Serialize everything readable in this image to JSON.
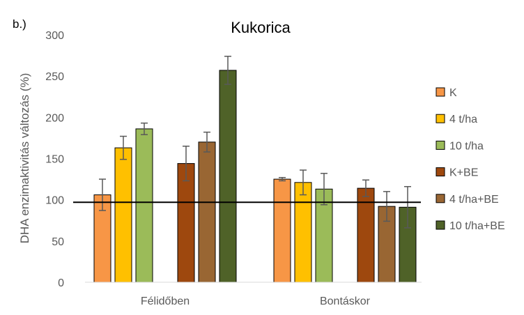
{
  "panel_label": "b.)",
  "chart_data": {
    "type": "bar",
    "title": "Kukorica",
    "xlabel": "",
    "ylabel": "DHA enzimaktivitás változás (%)",
    "ylim": [
      0,
      300
    ],
    "yticks": [
      "0",
      "50",
      "100",
      "150",
      "200",
      "250",
      "300"
    ],
    "reference_line": 97,
    "categories": [
      "Félidőben",
      "Bontáskor"
    ],
    "grid": false,
    "legend_position": "right",
    "series": [
      {
        "name": "K",
        "color": "#F79646",
        "values": [
          106,
          125
        ],
        "errors": [
          19,
          2
        ]
      },
      {
        "name": "4 t/ha",
        "color": "#FFC000",
        "values": [
          163,
          121
        ],
        "errors": [
          14,
          15
        ]
      },
      {
        "name": "10 t/ha",
        "color": "#9BBB59",
        "values": [
          186,
          113
        ],
        "errors": [
          7,
          19
        ]
      },
      {
        "name": "K+BE",
        "color": "#9E480E",
        "values": [
          144,
          114
        ],
        "errors": [
          21,
          10
        ]
      },
      {
        "name": "4 t/ha+BE",
        "color": "#996633",
        "values": [
          170,
          92
        ],
        "errors": [
          12,
          18
        ]
      },
      {
        "name": "10 t/ha+BE",
        "color": "#4F6228",
        "values": [
          257,
          91
        ],
        "errors": [
          17,
          25
        ]
      }
    ]
  }
}
